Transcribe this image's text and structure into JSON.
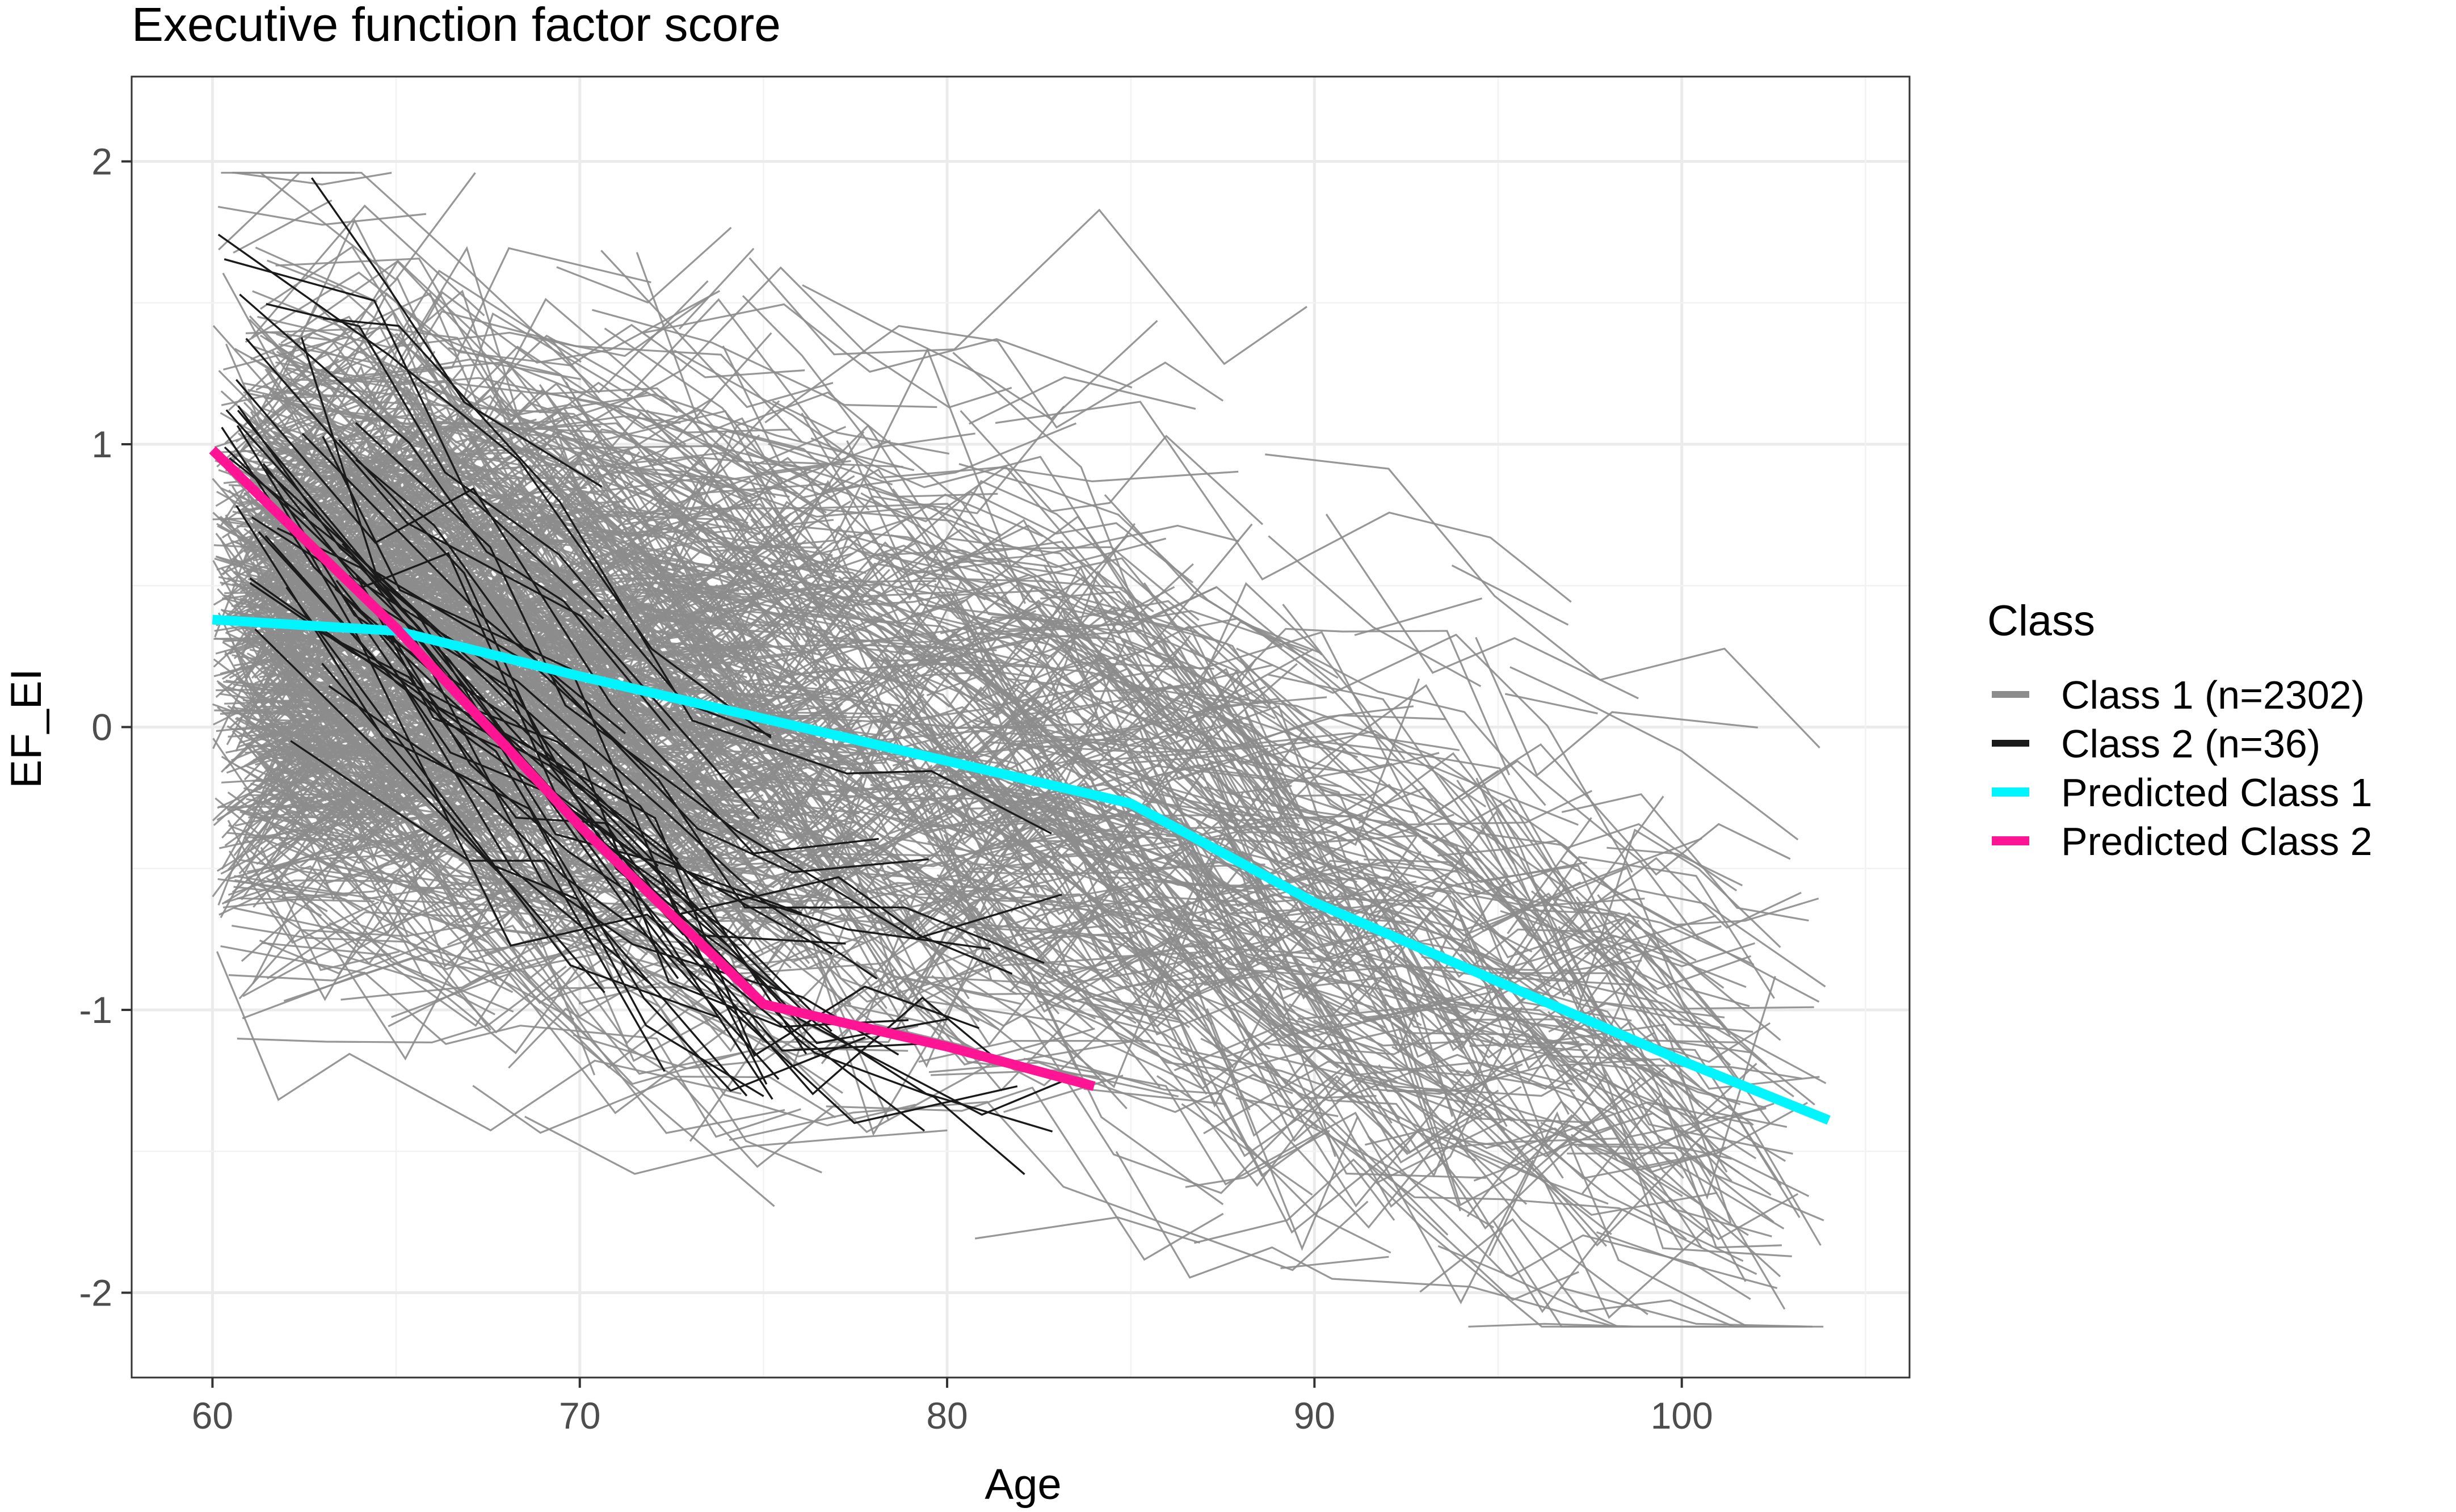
{
  "chart_data": {
    "type": "line",
    "title": "Executive function factor score",
    "xlabel": "Age",
    "ylabel": "EF_EI",
    "xlim": [
      57.8,
      106.2
    ],
    "ylim": [
      -2.3,
      2.3
    ],
    "x_ticks": [
      60,
      70,
      80,
      90,
      100
    ],
    "y_ticks": [
      -2,
      -1,
      0,
      1,
      2
    ],
    "grid": true,
    "legend": {
      "title": "Class",
      "placement": "right",
      "entries": [
        {
          "label": "Class 1 (n=2302)",
          "color": "#8c8c8c"
        },
        {
          "label": "Class 2 (n=36)",
          "color": "#1a1a1a"
        },
        {
          "label": "Predicted Class 1",
          "color": "#00f5ff"
        },
        {
          "label": "Predicted Class 2",
          "color": "#ff1493"
        }
      ]
    },
    "series": [
      {
        "name": "Predicted Class 1",
        "color": "#00f5ff",
        "x": [
          60,
          65,
          70,
          75,
          80,
          85,
          90,
          95,
          100,
          104
        ],
        "y": [
          0.38,
          0.34,
          0.18,
          0.03,
          -0.12,
          -0.27,
          -0.62,
          -0.9,
          -1.18,
          -1.39
        ]
      },
      {
        "name": "Predicted Class 2",
        "color": "#ff1493",
        "x": [
          60,
          65,
          70,
          75,
          80,
          84
        ],
        "y": [
          0.98,
          0.35,
          -0.35,
          -0.98,
          -1.13,
          -1.27
        ]
      }
    ],
    "individual_trajectories": [
      {
        "class": "Class 1 (n=2302)",
        "color": "#8c8c8c",
        "approx_count": 2302,
        "age_range": [
          60,
          104
        ],
        "trend": "declining with age, EF_EI roughly 1.9 to -2.1"
      },
      {
        "class": "Class 2 (n=36)",
        "color": "#1a1a1a",
        "approx_count": 36,
        "age_range": [
          60,
          84
        ],
        "trend": "steep decline from about 1.9 to about -1.9"
      }
    ]
  }
}
